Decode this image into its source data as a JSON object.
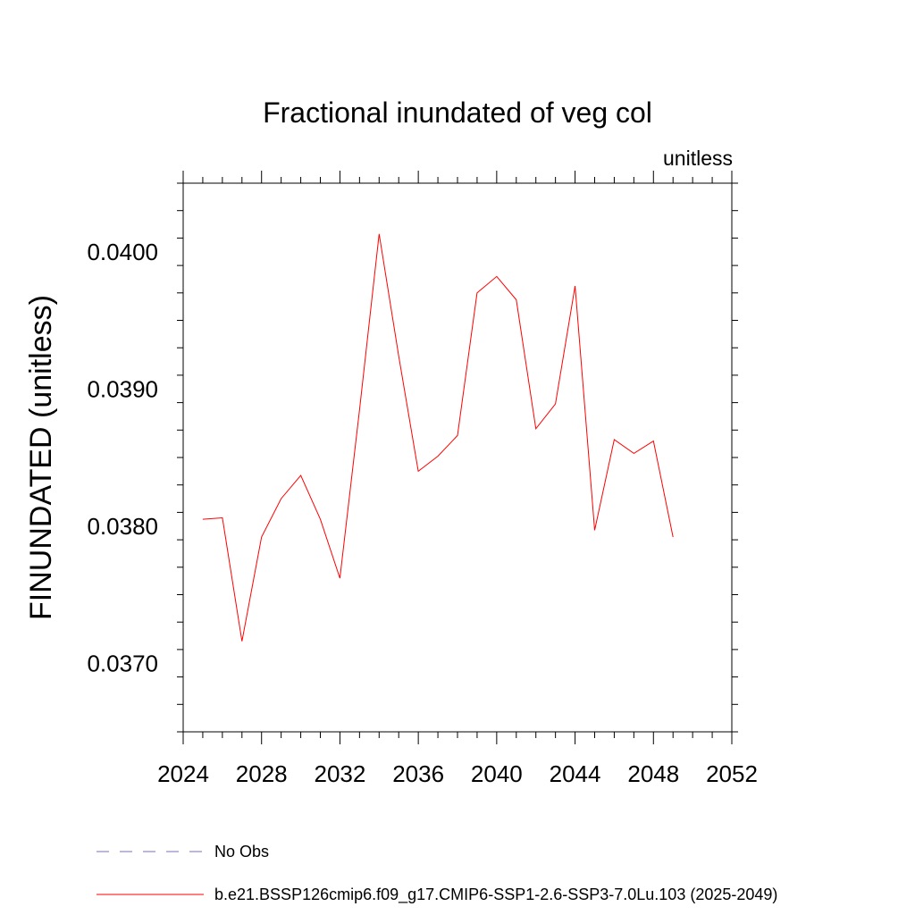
{
  "chart_data": {
    "type": "line",
    "title": "Fractional inundated of veg col",
    "units_label": "unitless",
    "ylabel": "FINUNDATED  (unitless)",
    "xlabel": "",
    "xlim": [
      2024,
      2052
    ],
    "ylim": [
      0.0365,
      0.0405
    ],
    "x_ticks": [
      "2024",
      "2028",
      "2032",
      "2036",
      "2040",
      "2044",
      "2048",
      "2052"
    ],
    "y_ticks": [
      "0.0370",
      "0.0380",
      "0.0390",
      "0.0400"
    ],
    "grid": false,
    "legend_position": "bottom",
    "series": [
      {
        "name": "No Obs",
        "color": "#7b6fb3",
        "dash": "dashed",
        "x": [],
        "y": []
      },
      {
        "name": "b.e21.BSSP126cmip6.f09_g17.CMIP6-SSP1-2.6-SSP3-7.0Lu.103 (2025-2049)",
        "color": "#ff0000",
        "dash": "solid",
        "x": [
          2025,
          2026,
          2027,
          2028,
          2029,
          2030,
          2031,
          2032,
          2033,
          2034,
          2035,
          2036,
          2037,
          2038,
          2039,
          2040,
          2041,
          2042,
          2043,
          2044,
          2045,
          2046,
          2047,
          2048,
          2049
        ],
        "y": [
          0.03805,
          0.03806,
          0.03716,
          0.03792,
          0.0382,
          0.03837,
          0.03805,
          0.03762,
          0.03885,
          0.04013,
          0.03924,
          0.0384,
          0.03851,
          0.03866,
          0.0397,
          0.03982,
          0.03965,
          0.03871,
          0.03889,
          0.03975,
          0.03797,
          0.03863,
          0.03853,
          0.03862,
          0.03792
        ]
      }
    ]
  }
}
